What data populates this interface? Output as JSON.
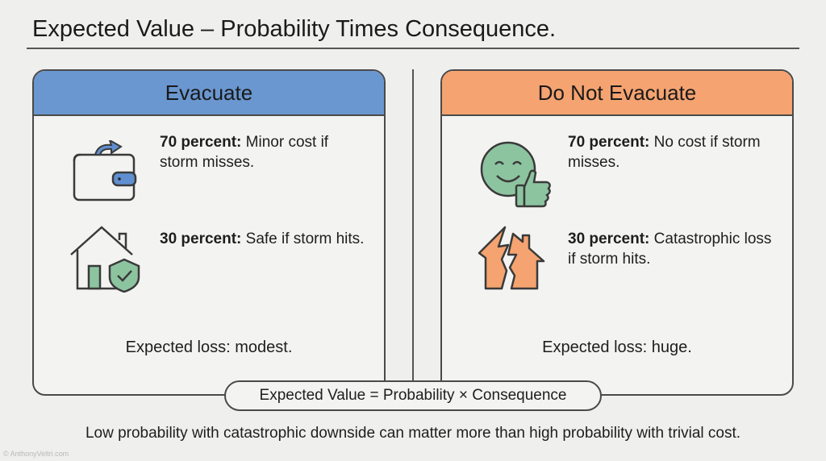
{
  "title": "Expected Value – Probability Times Consequence.",
  "left": {
    "header": "Evacuate",
    "items": [
      {
        "bold": "70 percent:",
        "text": " Minor cost if storm misses.",
        "icon": "wallet-icon"
      },
      {
        "bold": "30 percent:",
        "text": " Safe if storm hits.",
        "icon": "house-shield-icon"
      }
    ],
    "loss": "Expected loss: modest."
  },
  "right": {
    "header": "Do Not Evacuate",
    "items": [
      {
        "bold": "70 percent:",
        "text": " No cost if storm misses.",
        "icon": "smiley-thumbs-up-icon"
      },
      {
        "bold": "30 percent:",
        "text": " Catastrophic loss if storm hits.",
        "icon": "broken-house-icon"
      }
    ],
    "loss": "Expected loss: huge."
  },
  "formula": "Expected Value = Probability × Consequence",
  "footer": "Low probability with catastrophic downside can matter more than high probability with trivial cost.",
  "copyright": "© AnthonyVeltri.com",
  "colors": {
    "blue": "#6a97d0",
    "orange": "#f5a370",
    "green": "#8dc4a0"
  }
}
